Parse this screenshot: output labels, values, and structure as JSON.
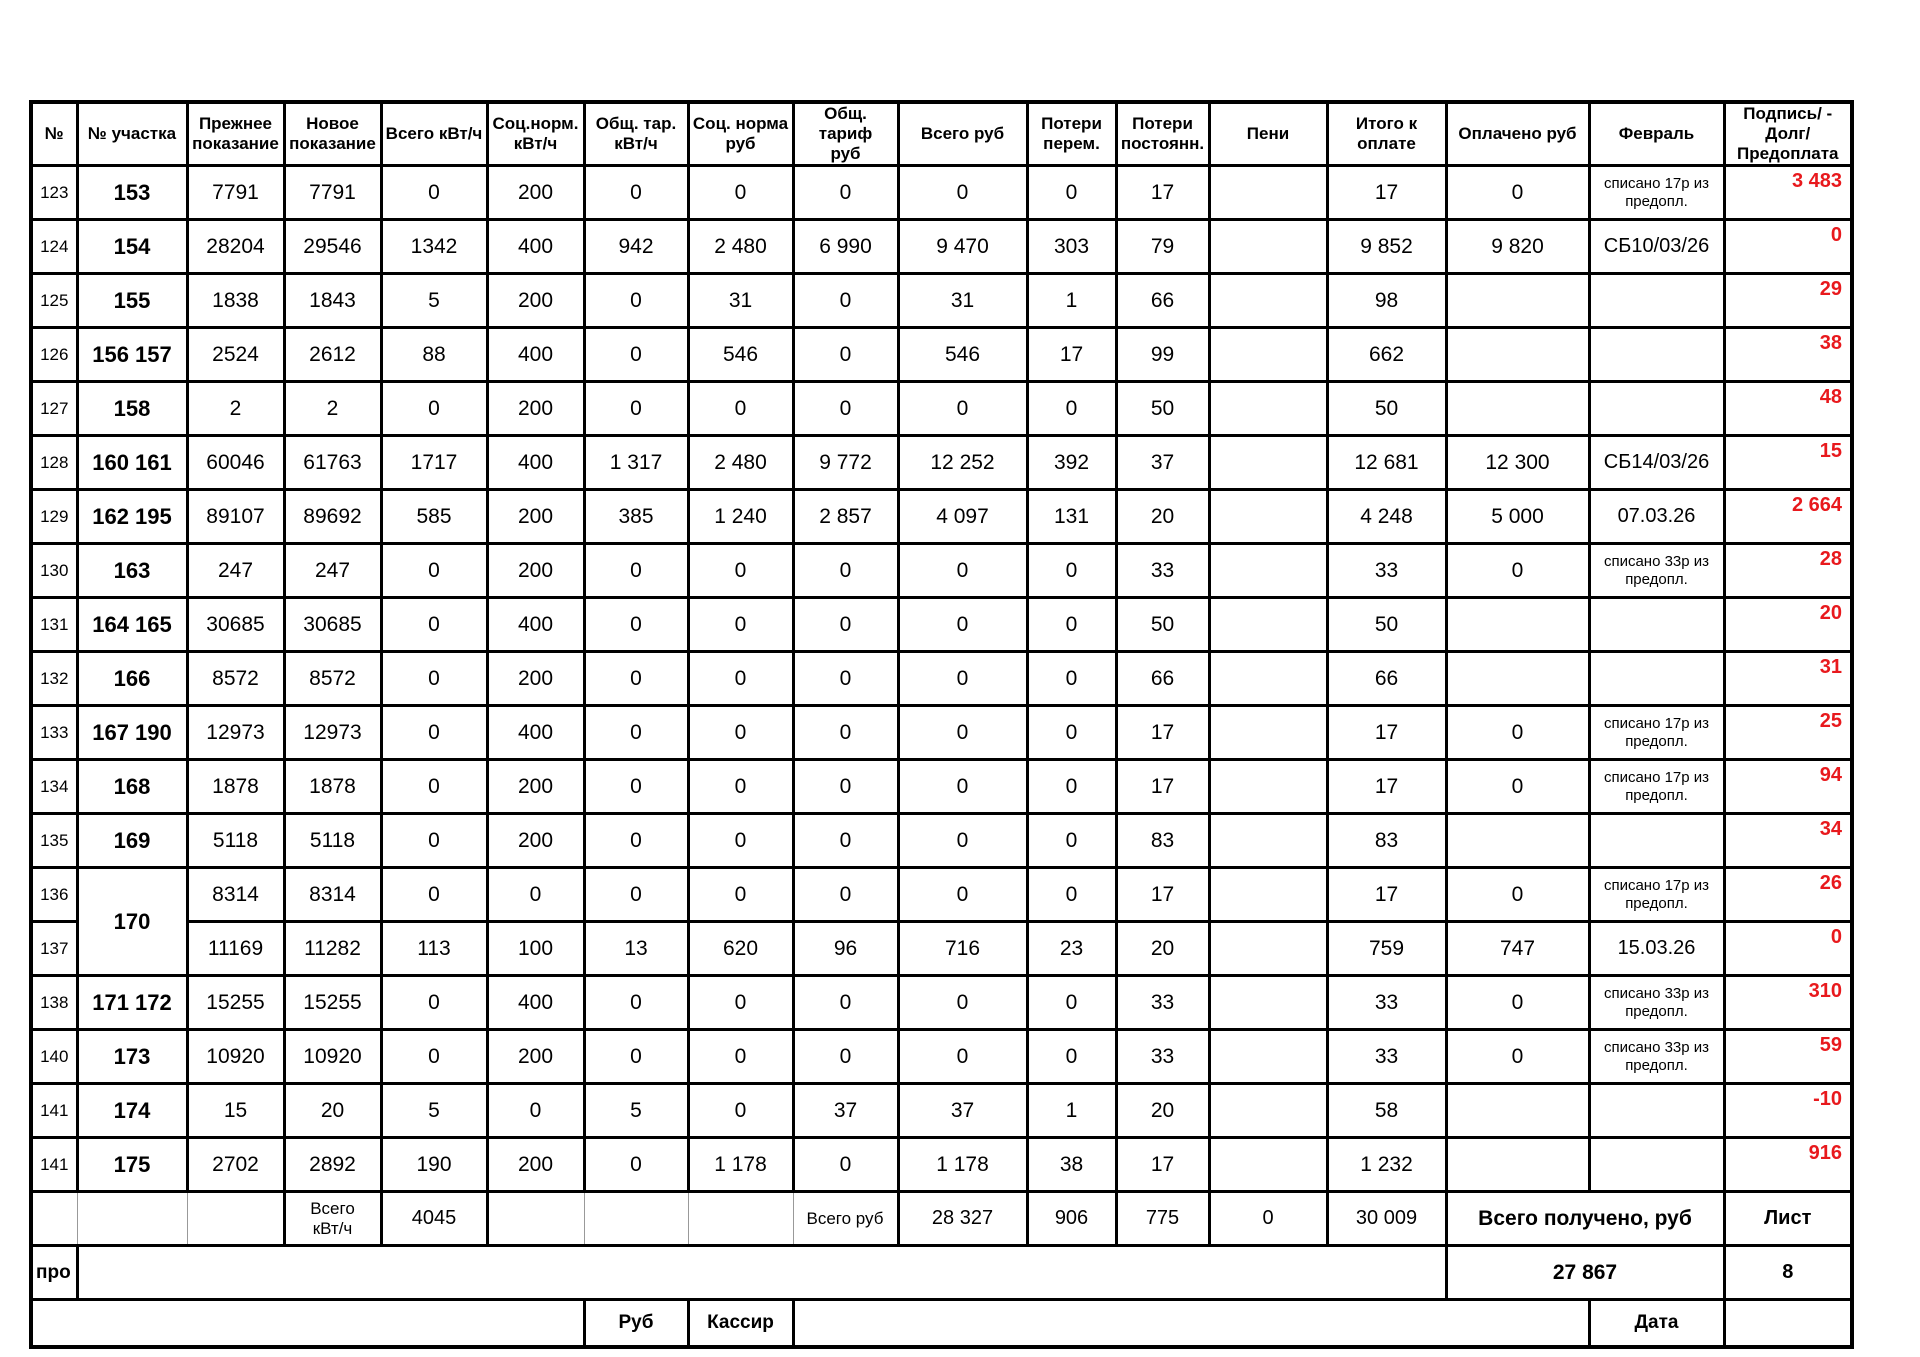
{
  "colors": {
    "red": "#e8191d",
    "grid": "#000000",
    "thin_grid": "#999999"
  },
  "table": {
    "header": [
      {
        "key": "n",
        "label": "№"
      },
      {
        "key": "plot",
        "label": "№ участка"
      },
      {
        "key": "prev",
        "label": "Прежнее\nпоказание"
      },
      {
        "key": "new",
        "label": "Новое\nпоказание"
      },
      {
        "key": "kwh",
        "label": "Всего кВт/ч"
      },
      {
        "key": "soc_kwh",
        "label": "Соц.норм.\nкВт/ч"
      },
      {
        "key": "tar_kwh",
        "label": "Общ. тар.\nкВт/ч"
      },
      {
        "key": "soc_rub",
        "label": "Соц. норма\nруб"
      },
      {
        "key": "tar_rub",
        "label": "Общ. тариф\nруб"
      },
      {
        "key": "total_rub",
        "label": "Всего руб"
      },
      {
        "key": "loss_var",
        "label": "Потери\nперем."
      },
      {
        "key": "loss_fix",
        "label": "Потери\nпостоянн."
      },
      {
        "key": "peni",
        "label": "Пени"
      },
      {
        "key": "to_pay",
        "label": "Итого к\nоплате"
      },
      {
        "key": "paid",
        "label": "Оплачено руб"
      },
      {
        "key": "feb",
        "label": "Февраль"
      },
      {
        "key": "sign",
        "label": "Подпись/ -\nДолг/Предоплата"
      }
    ],
    "rows": [
      {
        "n": "123",
        "plot": "153",
        "prev": "7791",
        "new": "7791",
        "kwh": "0",
        "soc_kwh": "200",
        "tar_kwh": "0",
        "soc_rub": "0",
        "tar_rub": "0",
        "total_rub": "0",
        "loss_var": "0",
        "loss_fix": "17",
        "peni": "",
        "to_pay": "17",
        "paid": "0",
        "feb": "списано 17р из предопл.",
        "red": "3 483"
      },
      {
        "n": "124",
        "plot": "154",
        "prev": "28204",
        "new": "29546",
        "kwh": "1342",
        "soc_kwh": "400",
        "tar_kwh": "942",
        "soc_rub": "2 480",
        "tar_rub": "6 990",
        "total_rub": "9 470",
        "loss_var": "303",
        "loss_fix": "79",
        "peni": "",
        "to_pay": "9 852",
        "paid": "9 820",
        "feb": "СБ10/03/26",
        "red": "0"
      },
      {
        "n": "125",
        "plot": "155",
        "prev": "1838",
        "new": "1843",
        "kwh": "5",
        "soc_kwh": "200",
        "tar_kwh": "0",
        "soc_rub": "31",
        "tar_rub": "0",
        "total_rub": "31",
        "loss_var": "1",
        "loss_fix": "66",
        "peni": "",
        "to_pay": "98",
        "paid": "",
        "feb": "",
        "red": "29"
      },
      {
        "n": "126",
        "plot": "156 157",
        "prev": "2524",
        "new": "2612",
        "kwh": "88",
        "soc_kwh": "400",
        "tar_kwh": "0",
        "soc_rub": "546",
        "tar_rub": "0",
        "total_rub": "546",
        "loss_var": "17",
        "loss_fix": "99",
        "peni": "",
        "to_pay": "662",
        "paid": "",
        "feb": "",
        "red": "38"
      },
      {
        "n": "127",
        "plot": "158",
        "prev": "2",
        "new": "2",
        "kwh": "0",
        "soc_kwh": "200",
        "tar_kwh": "0",
        "soc_rub": "0",
        "tar_rub": "0",
        "total_rub": "0",
        "loss_var": "0",
        "loss_fix": "50",
        "peni": "",
        "to_pay": "50",
        "paid": "",
        "feb": "",
        "red": "48"
      },
      {
        "n": "128",
        "plot": "160 161",
        "prev": "60046",
        "new": "61763",
        "kwh": "1717",
        "soc_kwh": "400",
        "tar_kwh": "1 317",
        "soc_rub": "2 480",
        "tar_rub": "9 772",
        "total_rub": "12 252",
        "loss_var": "392",
        "loss_fix": "37",
        "peni": "",
        "to_pay": "12 681",
        "paid": "12 300",
        "feb": "СБ14/03/26",
        "red": "15"
      },
      {
        "n": "129",
        "plot": "162 195",
        "prev": "89107",
        "new": "89692",
        "kwh": "585",
        "soc_kwh": "200",
        "tar_kwh": "385",
        "soc_rub": "1 240",
        "tar_rub": "2 857",
        "total_rub": "4 097",
        "loss_var": "131",
        "loss_fix": "20",
        "peni": "",
        "to_pay": "4 248",
        "paid": "5 000",
        "feb": "07.03.26",
        "red": "2 664"
      },
      {
        "n": "130",
        "plot": "163",
        "prev": "247",
        "new": "247",
        "kwh": "0",
        "soc_kwh": "200",
        "tar_kwh": "0",
        "soc_rub": "0",
        "tar_rub": "0",
        "total_rub": "0",
        "loss_var": "0",
        "loss_fix": "33",
        "peni": "",
        "to_pay": "33",
        "paid": "0",
        "feb": "списано 33р из предопл.",
        "red": "28"
      },
      {
        "n": "131",
        "plot": "164 165",
        "prev": "30685",
        "new": "30685",
        "kwh": "0",
        "soc_kwh": "400",
        "tar_kwh": "0",
        "soc_rub": "0",
        "tar_rub": "0",
        "total_rub": "0",
        "loss_var": "0",
        "loss_fix": "50",
        "peni": "",
        "to_pay": "50",
        "paid": "",
        "feb": "",
        "red": "20"
      },
      {
        "n": "132",
        "plot": "166",
        "prev": "8572",
        "new": "8572",
        "kwh": "0",
        "soc_kwh": "200",
        "tar_kwh": "0",
        "soc_rub": "0",
        "tar_rub": "0",
        "total_rub": "0",
        "loss_var": "0",
        "loss_fix": "66",
        "peni": "",
        "to_pay": "66",
        "paid": "",
        "feb": "",
        "red": "31"
      },
      {
        "n": "133",
        "plot": "167 190",
        "prev": "12973",
        "new": "12973",
        "kwh": "0",
        "soc_kwh": "400",
        "tar_kwh": "0",
        "soc_rub": "0",
        "tar_rub": "0",
        "total_rub": "0",
        "loss_var": "0",
        "loss_fix": "17",
        "peni": "",
        "to_pay": "17",
        "paid": "0",
        "feb": "списано 17р из предопл.",
        "red": "25"
      },
      {
        "n": "134",
        "plot": "168",
        "prev": "1878",
        "new": "1878",
        "kwh": "0",
        "soc_kwh": "200",
        "tar_kwh": "0",
        "soc_rub": "0",
        "tar_rub": "0",
        "total_rub": "0",
        "loss_var": "0",
        "loss_fix": "17",
        "peni": "",
        "to_pay": "17",
        "paid": "0",
        "feb": "списано 17р из предопл.",
        "red": "94"
      },
      {
        "n": "135",
        "plot": "169",
        "prev": "5118",
        "new": "5118",
        "kwh": "0",
        "soc_kwh": "200",
        "tar_kwh": "0",
        "soc_rub": "0",
        "tar_rub": "0",
        "total_rub": "0",
        "loss_var": "0",
        "loss_fix": "83",
        "peni": "",
        "to_pay": "83",
        "paid": "",
        "feb": "",
        "red": "34"
      },
      {
        "n": "136",
        "plot": "170",
        "plot_rowspan": 2,
        "prev": "8314",
        "new": "8314",
        "kwh": "0",
        "soc_kwh": "0",
        "tar_kwh": "0",
        "soc_rub": "0",
        "tar_rub": "0",
        "total_rub": "0",
        "loss_var": "0",
        "loss_fix": "17",
        "peni": "",
        "to_pay": "17",
        "paid": "0",
        "feb": "списано 17р из предопл.",
        "red": "26"
      },
      {
        "n": "137",
        "plot": null,
        "prev": "11169",
        "new": "11282",
        "kwh": "113",
        "soc_kwh": "100",
        "tar_kwh": "13",
        "soc_rub": "620",
        "tar_rub": "96",
        "total_rub": "716",
        "loss_var": "23",
        "loss_fix": "20",
        "peni": "",
        "to_pay": "759",
        "paid": "747",
        "feb": "15.03.26",
        "red": "0"
      },
      {
        "n": "138",
        "plot": "171 172",
        "prev": "15255",
        "new": "15255",
        "kwh": "0",
        "soc_kwh": "400",
        "tar_kwh": "0",
        "soc_rub": "0",
        "tar_rub": "0",
        "total_rub": "0",
        "loss_var": "0",
        "loss_fix": "33",
        "peni": "",
        "to_pay": "33",
        "paid": "0",
        "feb": "списано 33р из предопл.",
        "red": "310"
      },
      {
        "n": "140",
        "plot": "173",
        "prev": "10920",
        "new": "10920",
        "kwh": "0",
        "soc_kwh": "200",
        "tar_kwh": "0",
        "soc_rub": "0",
        "tar_rub": "0",
        "total_rub": "0",
        "loss_var": "0",
        "loss_fix": "33",
        "peni": "",
        "to_pay": "33",
        "paid": "0",
        "feb": "списано 33р из предопл.",
        "red": "59"
      },
      {
        "n": "141",
        "plot": "174",
        "prev": "15",
        "new": "20",
        "kwh": "5",
        "soc_kwh": "0",
        "tar_kwh": "5",
        "soc_rub": "0",
        "tar_rub": "37",
        "total_rub": "37",
        "loss_var": "1",
        "loss_fix": "20",
        "peni": "",
        "to_pay": "58",
        "paid": "",
        "feb": "",
        "red": "-10"
      },
      {
        "n": "141",
        "plot": "175",
        "prev": "2702",
        "new": "2892",
        "kwh": "190",
        "soc_kwh": "200",
        "tar_kwh": "0",
        "soc_rub": "1 178",
        "tar_rub": "0",
        "total_rub": "1 178",
        "loss_var": "38",
        "loss_fix": "17",
        "peni": "",
        "to_pay": "1 232",
        "paid": "",
        "feb": "",
        "red": "916"
      }
    ],
    "totals": {
      "kwh_label": "Всего\nкВт/ч",
      "kwh_value": "4045",
      "rub_label": "Всего руб",
      "rub_value": "28 327",
      "loss_var": "906",
      "loss_fix": "775",
      "peni": "0",
      "to_pay": "30 009",
      "received_label": "Всего получено, руб",
      "sheet_label": "Лист"
    },
    "footer": {
      "pro": "про",
      "received_value": "27 867",
      "sheet_value": "8",
      "rub_label": "Руб",
      "cashier_label": "Кассир",
      "date_label": "Дата"
    }
  }
}
